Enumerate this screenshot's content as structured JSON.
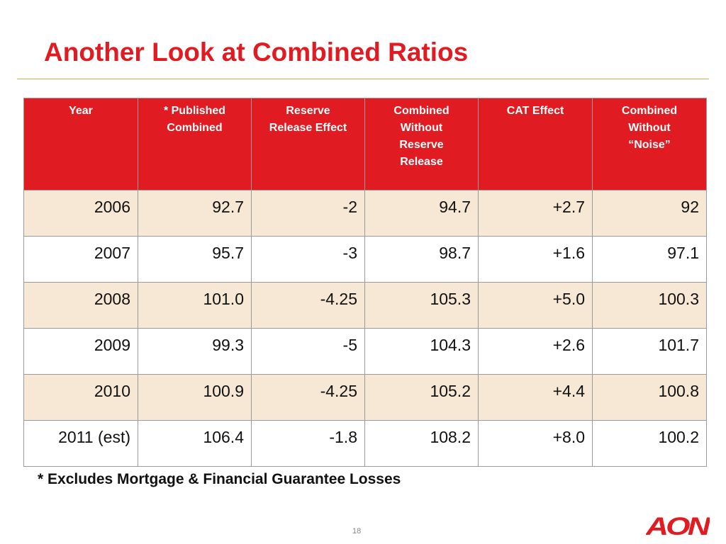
{
  "slide": {
    "title": "Another Look at Combined Ratios",
    "footnote": "* Excludes Mortgage & Financial Guarantee Losses",
    "page_number": "18",
    "logo_text": "AON",
    "accent_color": "#e11b22",
    "row_shade_color": "#f6e8d4"
  },
  "table": {
    "headers": [
      [
        "Year"
      ],
      [
        "* Published",
        "Combined"
      ],
      [
        "Reserve",
        "Release Effect"
      ],
      [
        "Combined",
        "Without",
        "Reserve",
        "Release"
      ],
      [
        "CAT Effect"
      ],
      [
        "Combined",
        "Without",
        "“Noise”"
      ]
    ],
    "rows": [
      [
        "2006",
        "92.7",
        "-2",
        "94.7",
        "+2.7",
        "92"
      ],
      [
        "2007",
        "95.7",
        "-3",
        "98.7",
        "+1.6",
        "97.1"
      ],
      [
        "2008",
        "101.0",
        "-4.25",
        "105.3",
        "+5.0",
        "100.3"
      ],
      [
        "2009",
        "99.3",
        "-5",
        "104.3",
        "+2.6",
        "101.7"
      ],
      [
        "2010",
        "100.9",
        "-4.25",
        "105.2",
        "+4.4",
        "100.8"
      ],
      [
        "2011 (est)",
        "106.4",
        "-1.8",
        "108.2",
        "+8.0",
        "100.2"
      ]
    ]
  }
}
